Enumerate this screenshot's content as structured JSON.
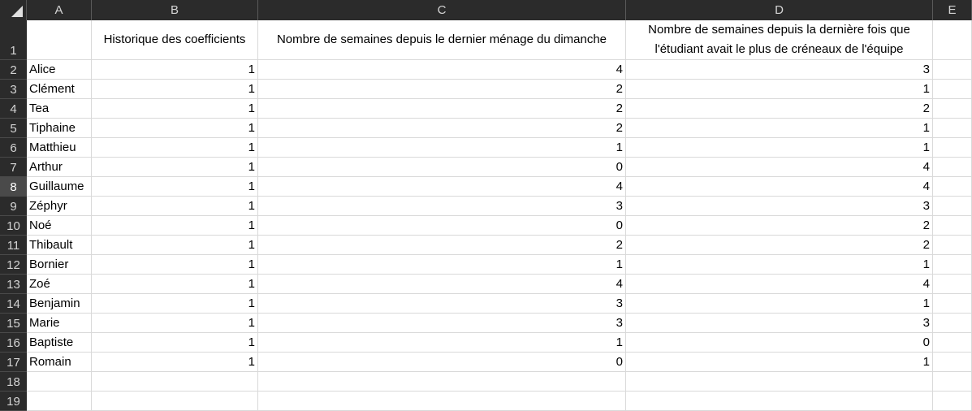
{
  "columns": [
    "A",
    "B",
    "C",
    "D",
    "E"
  ],
  "headers": {
    "a": "",
    "b": "Historique des coefficients",
    "c": "Nombre de semaines depuis le dernier ménage du dimanche",
    "d": "Nombre de semaines depuis la dernière fois que l'étudiant avait le plus de créneaux de l'équipe"
  },
  "row_numbers": [
    "1",
    "2",
    "3",
    "4",
    "5",
    "6",
    "7",
    "8",
    "9",
    "10",
    "11",
    "12",
    "13",
    "14",
    "15",
    "16",
    "17",
    "18",
    "19"
  ],
  "selected_row": "8",
  "rows": [
    {
      "name": "Alice",
      "b": "1",
      "c": "4",
      "d": "3"
    },
    {
      "name": "Clément",
      "b": "1",
      "c": "2",
      "d": "1"
    },
    {
      "name": "Tea",
      "b": "1",
      "c": "2",
      "d": "2"
    },
    {
      "name": "Tiphaine",
      "b": "1",
      "c": "2",
      "d": "1"
    },
    {
      "name": "Matthieu",
      "b": "1",
      "c": "1",
      "d": "1"
    },
    {
      "name": "Arthur",
      "b": "1",
      "c": "0",
      "d": "4"
    },
    {
      "name": "Guillaume",
      "b": "1",
      "c": "4",
      "d": "4"
    },
    {
      "name": "Zéphyr",
      "b": "1",
      "c": "3",
      "d": "3"
    },
    {
      "name": "Noé",
      "b": "1",
      "c": "0",
      "d": "2"
    },
    {
      "name": "Thibault",
      "b": "1",
      "c": "2",
      "d": "2"
    },
    {
      "name": "Bornier",
      "b": "1",
      "c": "1",
      "d": "1"
    },
    {
      "name": "Zoé",
      "b": "1",
      "c": "4",
      "d": "4"
    },
    {
      "name": "Benjamin",
      "b": "1",
      "c": "3",
      "d": "1"
    },
    {
      "name": "Marie",
      "b": "1",
      "c": "3",
      "d": "3"
    },
    {
      "name": "Baptiste",
      "b": "1",
      "c": "1",
      "d": "0"
    },
    {
      "name": "Romain",
      "b": "1",
      "c": "0",
      "d": "1"
    }
  ],
  "colors": {
    "header_bg": "#2b2b2b",
    "header_text": "#d4d4d4",
    "gridline": "#d9d9d9",
    "selected_row_header": "#4a4a4a"
  }
}
